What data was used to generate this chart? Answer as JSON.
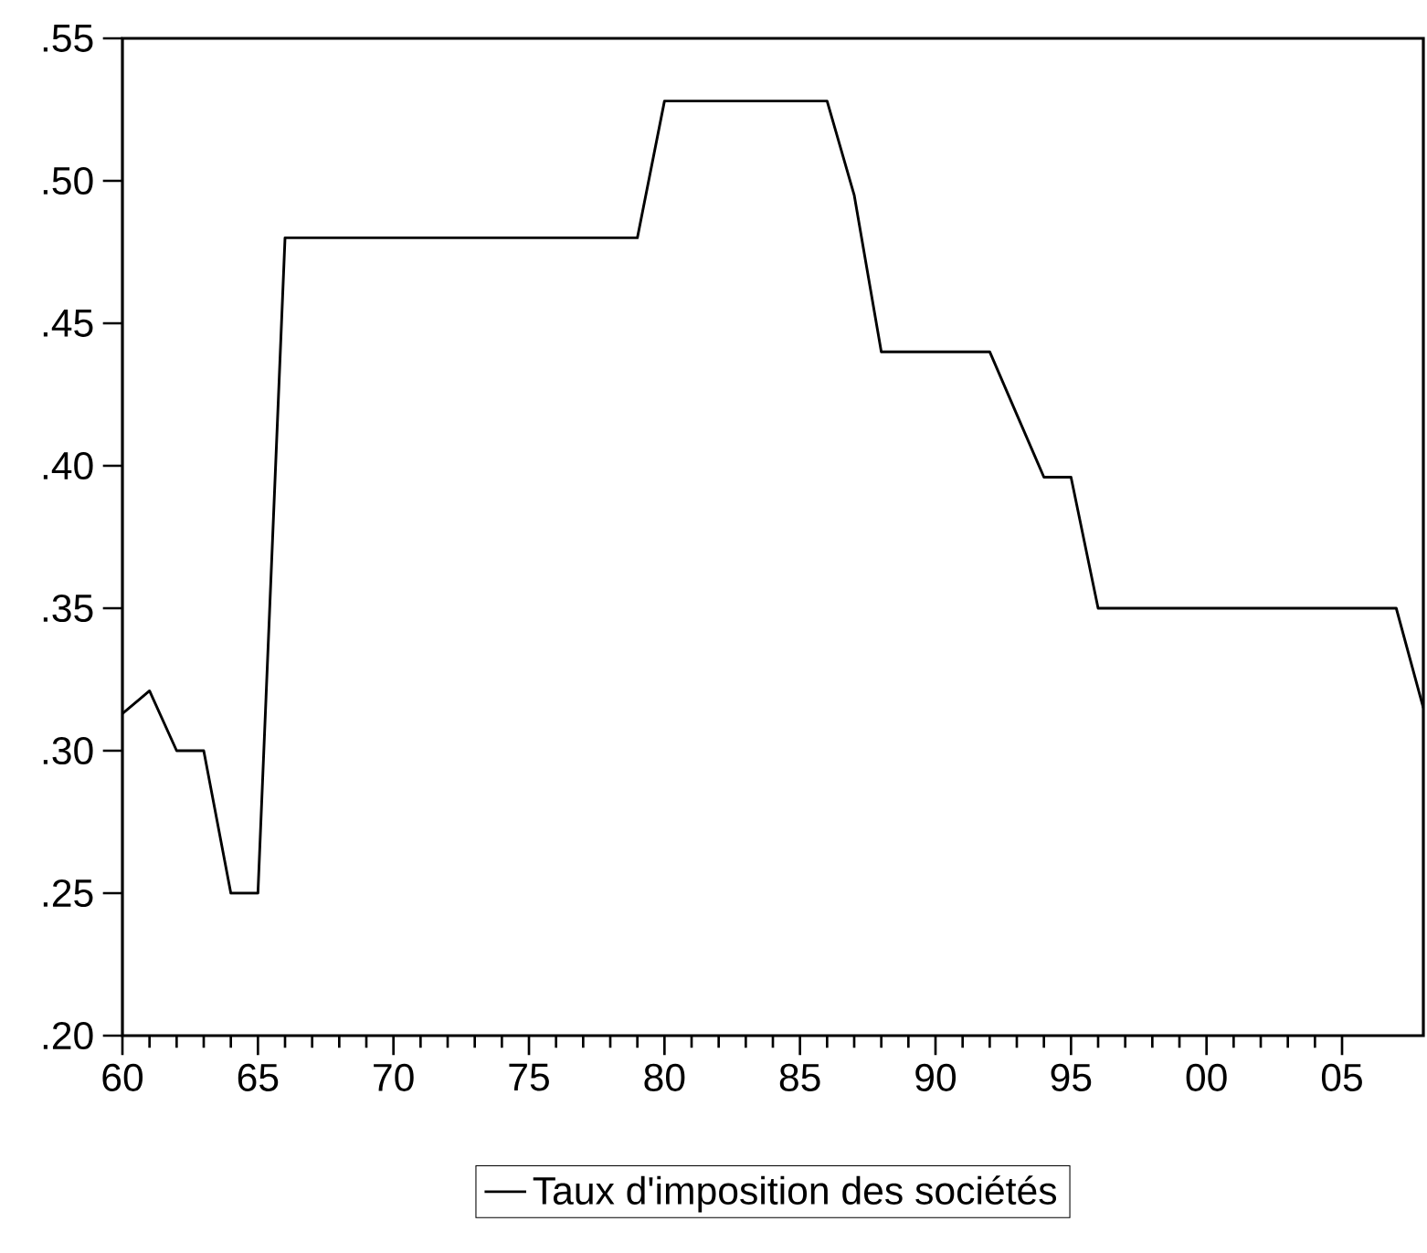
{
  "chart_data": {
    "type": "line",
    "x": [
      1960,
      1961,
      1962,
      1963,
      1964,
      1965,
      1966,
      1967,
      1968,
      1969,
      1970,
      1971,
      1972,
      1973,
      1974,
      1975,
      1976,
      1977,
      1978,
      1979,
      1980,
      1981,
      1982,
      1983,
      1984,
      1985,
      1986,
      1987,
      1988,
      1989,
      1990,
      1991,
      1992,
      1993,
      1994,
      1995,
      1996,
      1997,
      1998,
      1999,
      2000,
      2001,
      2002,
      2003,
      2004,
      2005,
      2006,
      2007,
      2008
    ],
    "series": [
      {
        "name": "Taux d'imposition des sociétés",
        "color": "#000000",
        "values": [
          0.313,
          0.321,
          0.3,
          0.3,
          0.25,
          0.25,
          0.48,
          0.48,
          0.48,
          0.48,
          0.48,
          0.48,
          0.48,
          0.48,
          0.48,
          0.48,
          0.48,
          0.48,
          0.48,
          0.48,
          0.528,
          0.528,
          0.528,
          0.528,
          0.528,
          0.528,
          0.528,
          0.495,
          0.44,
          0.44,
          0.44,
          0.44,
          0.44,
          0.418,
          0.396,
          0.396,
          0.35,
          0.35,
          0.35,
          0.35,
          0.35,
          0.35,
          0.35,
          0.35,
          0.35,
          0.35,
          0.35,
          0.35,
          0.315
        ]
      }
    ],
    "xlim": [
      1960,
      2008
    ],
    "xticks": [
      {
        "value": 1960,
        "label": "60"
      },
      {
        "value": 1965,
        "label": "65"
      },
      {
        "value": 1970,
        "label": "70"
      },
      {
        "value": 1975,
        "label": "75"
      },
      {
        "value": 1980,
        "label": "80"
      },
      {
        "value": 1985,
        "label": "85"
      },
      {
        "value": 1990,
        "label": "90"
      },
      {
        "value": 1995,
        "label": "95"
      },
      {
        "value": 2000,
        "label": "00"
      },
      {
        "value": 2005,
        "label": "05"
      }
    ],
    "ylim": [
      0.2,
      0.55
    ],
    "yticks": [
      {
        "value": 0.2,
        "label": ".20"
      },
      {
        "value": 0.25,
        "label": ".25"
      },
      {
        "value": 0.3,
        "label": ".30"
      },
      {
        "value": 0.35,
        "label": ".35"
      },
      {
        "value": 0.4,
        "label": ".40"
      },
      {
        "value": 0.45,
        "label": ".45"
      },
      {
        "value": 0.5,
        "label": ".50"
      },
      {
        "value": 0.55,
        "label": ".55"
      }
    ],
    "legend": "bottom",
    "grid": false,
    "marker": "none",
    "line_style": "solid"
  }
}
